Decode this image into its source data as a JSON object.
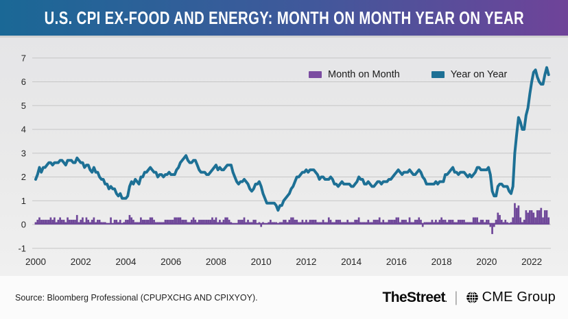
{
  "header": {
    "title": "U.S. CPI EX-FOOD AND ENERGY: MONTH ON MONTH YEAR ON YEAR"
  },
  "legend": {
    "items": [
      {
        "label": "Month on Month",
        "color": "#7b4ca1"
      },
      {
        "label": "Year on Year",
        "color": "#1d7095"
      }
    ]
  },
  "colors": {
    "header_gradient_left": "#1a6896",
    "header_gradient_right": "#6f4399",
    "panel_bg": "#e9e9e9",
    "gridline": "#c6c6c6",
    "tick_text": "#262626",
    "bar": "#6f4899",
    "line": "#1d7095"
  },
  "chart_data": {
    "type": "mixed-bar-line",
    "title": "U.S. CPI EX-FOOD AND ENERGY: MONTH ON MONTH YEAR ON YEAR",
    "x_unit": "month",
    "x_start": "2000-01",
    "x_end": "2022-10",
    "x_tick_years": [
      2000,
      2002,
      2004,
      2006,
      2008,
      2010,
      2012,
      2014,
      2016,
      2018,
      2020,
      2022
    ],
    "y_ticks": [
      -1,
      0,
      1,
      2,
      3,
      4,
      5,
      6,
      7
    ],
    "ylim": [
      -1,
      7
    ],
    "grid": true,
    "legend_position": "top-center",
    "series": [
      {
        "name": "Month on Month",
        "type": "bar",
        "color": "#6f4899",
        "values": [
          0.1,
          0.2,
          0.3,
          0.2,
          0.2,
          0.2,
          0.2,
          0.2,
          0.3,
          0.2,
          0.3,
          0.1,
          0.2,
          0.3,
          0.2,
          0.2,
          0.1,
          0.3,
          0.2,
          0.2,
          0.2,
          0.2,
          0.4,
          0.1,
          0.2,
          0.3,
          0.1,
          0.3,
          0.2,
          0.1,
          0.2,
          0.3,
          0.1,
          0.2,
          0.2,
          0.1,
          0.1,
          0.1,
          0.0,
          0.0,
          0.3,
          0.0,
          0.2,
          0.2,
          0.1,
          0.2,
          0.0,
          0.1,
          0.2,
          0.2,
          0.4,
          0.3,
          0.2,
          0.1,
          0.1,
          0.1,
          0.3,
          0.2,
          0.2,
          0.2,
          0.2,
          0.3,
          0.3,
          0.2,
          0.1,
          0.1,
          0.1,
          0.1,
          0.1,
          0.2,
          0.2,
          0.2,
          0.2,
          0.2,
          0.3,
          0.3,
          0.3,
          0.3,
          0.2,
          0.2,
          0.2,
          0.1,
          0.1,
          0.2,
          0.3,
          0.2,
          0.1,
          0.2,
          0.2,
          0.2,
          0.2,
          0.2,
          0.2,
          0.2,
          0.3,
          0.2,
          0.3,
          0.1,
          0.2,
          0.1,
          0.2,
          0.3,
          0.3,
          0.2,
          0.1,
          0.0,
          0.0,
          0.0,
          0.2,
          0.2,
          0.2,
          0.3,
          0.1,
          0.2,
          0.1,
          0.1,
          0.2,
          0.2,
          0.0,
          0.1,
          -0.1,
          0.1,
          0.0,
          0.0,
          0.1,
          0.2,
          0.1,
          0.1,
          0.1,
          0.0,
          0.1,
          0.1,
          0.2,
          0.2,
          0.1,
          0.2,
          0.3,
          0.3,
          0.2,
          0.2,
          0.1,
          0.1,
          0.2,
          0.1,
          0.2,
          0.1,
          0.2,
          0.2,
          0.2,
          0.2,
          0.1,
          0.1,
          0.1,
          0.2,
          0.1,
          0.1,
          0.3,
          0.2,
          0.1,
          0.1,
          0.2,
          0.2,
          0.2,
          0.1,
          0.1,
          0.1,
          0.2,
          0.1,
          0.1,
          0.1,
          0.2,
          0.2,
          0.3,
          0.1,
          0.1,
          0.1,
          0.1,
          0.2,
          0.1,
          0.1,
          0.2,
          0.2,
          0.2,
          0.3,
          0.1,
          0.2,
          0.1,
          0.1,
          0.2,
          0.2,
          0.2,
          0.2,
          0.3,
          0.3,
          0.1,
          0.2,
          0.2,
          0.2,
          0.1,
          0.3,
          0.1,
          0.1,
          0.2,
          0.2,
          0.3,
          0.2,
          -0.1,
          0.1,
          0.1,
          0.1,
          0.1,
          0.2,
          0.1,
          0.2,
          0.1,
          0.2,
          0.3,
          0.2,
          0.2,
          0.1,
          0.2,
          0.2,
          0.2,
          0.1,
          0.1,
          0.2,
          0.2,
          0.2,
          0.2,
          0.1,
          0.1,
          0.1,
          0.1,
          0.3,
          0.3,
          0.3,
          0.1,
          0.2,
          0.2,
          0.1,
          0.2,
          0.2,
          -0.1,
          -0.4,
          -0.1,
          0.2,
          0.5,
          0.4,
          0.2,
          0.1,
          0.2,
          0.1,
          0.0,
          0.1,
          0.3,
          0.9,
          0.7,
          0.8,
          0.3,
          0.1,
          0.2,
          0.6,
          0.5,
          0.6,
          0.6,
          0.5,
          0.3,
          0.6,
          0.6,
          0.7,
          0.3,
          0.6,
          0.6,
          0.3
        ]
      },
      {
        "name": "Year on Year",
        "type": "line",
        "color": "#1d7095",
        "values": [
          1.9,
          2.1,
          2.4,
          2.2,
          2.4,
          2.4,
          2.5,
          2.6,
          2.6,
          2.5,
          2.6,
          2.6,
          2.6,
          2.7,
          2.7,
          2.6,
          2.5,
          2.7,
          2.7,
          2.7,
          2.6,
          2.6,
          2.8,
          2.7,
          2.6,
          2.6,
          2.4,
          2.5,
          2.5,
          2.3,
          2.2,
          2.4,
          2.2,
          2.2,
          2.0,
          1.9,
          1.9,
          1.7,
          1.7,
          1.5,
          1.6,
          1.5,
          1.5,
          1.3,
          1.2,
          1.3,
          1.1,
          1.1,
          1.1,
          1.2,
          1.6,
          1.8,
          1.7,
          1.9,
          1.8,
          1.7,
          2.0,
          2.0,
          2.2,
          2.2,
          2.3,
          2.4,
          2.3,
          2.2,
          2.2,
          2.0,
          2.1,
          2.1,
          2.0,
          2.1,
          2.1,
          2.2,
          2.1,
          2.1,
          2.1,
          2.3,
          2.4,
          2.6,
          2.7,
          2.8,
          2.9,
          2.7,
          2.6,
          2.6,
          2.7,
          2.7,
          2.5,
          2.3,
          2.2,
          2.2,
          2.2,
          2.1,
          2.1,
          2.2,
          2.3,
          2.4,
          2.5,
          2.3,
          2.4,
          2.3,
          2.3,
          2.4,
          2.5,
          2.5,
          2.5,
          2.2,
          2.0,
          1.8,
          1.7,
          1.8,
          1.8,
          1.9,
          1.8,
          1.7,
          1.5,
          1.4,
          1.5,
          1.7,
          1.7,
          1.8,
          1.6,
          1.3,
          1.1,
          0.9,
          0.9,
          0.9,
          0.9,
          0.9,
          0.8,
          0.6,
          0.8,
          0.8,
          1.0,
          1.1,
          1.2,
          1.3,
          1.5,
          1.6,
          1.8,
          2.0,
          2.0,
          2.1,
          2.2,
          2.2,
          2.3,
          2.2,
          2.3,
          2.3,
          2.3,
          2.2,
          2.1,
          1.9,
          2.0,
          2.0,
          1.9,
          1.9,
          1.9,
          2.0,
          1.9,
          1.7,
          1.7,
          1.6,
          1.7,
          1.8,
          1.7,
          1.7,
          1.7,
          1.7,
          1.6,
          1.6,
          1.7,
          1.8,
          2.0,
          1.9,
          1.9,
          1.7,
          1.7,
          1.8,
          1.7,
          1.6,
          1.6,
          1.7,
          1.8,
          1.8,
          1.7,
          1.8,
          1.8,
          1.8,
          1.9,
          1.9,
          2.0,
          2.1,
          2.2,
          2.3,
          2.2,
          2.1,
          2.2,
          2.2,
          2.2,
          2.3,
          2.2,
          2.1,
          2.1,
          2.2,
          2.3,
          2.2,
          2.0,
          1.9,
          1.7,
          1.7,
          1.7,
          1.7,
          1.7,
          1.8,
          1.7,
          1.8,
          1.8,
          1.8,
          2.1,
          2.1,
          2.2,
          2.3,
          2.4,
          2.2,
          2.2,
          2.1,
          2.2,
          2.2,
          2.2,
          2.1,
          2.0,
          2.1,
          2.0,
          2.1,
          2.2,
          2.4,
          2.4,
          2.3,
          2.3,
          2.3,
          2.3,
          2.4,
          2.1,
          1.4,
          1.2,
          1.2,
          1.6,
          1.7,
          1.7,
          1.6,
          1.6,
          1.6,
          1.4,
          1.3,
          1.6,
          3.0,
          3.8,
          4.5,
          4.3,
          4.0,
          4.0,
          4.6,
          4.9,
          5.5,
          6.0,
          6.4,
          6.5,
          6.2,
          6.0,
          5.9,
          5.9,
          6.3,
          6.6,
          6.3
        ]
      }
    ]
  },
  "footer": {
    "source": "Source: Bloomberg Professional (CPUPXCHG AND CPIXYOY).",
    "brands": {
      "thestreet": "TheStreet",
      "thestreet_mark": ".",
      "separator": "|",
      "cme": "CME Group"
    }
  }
}
